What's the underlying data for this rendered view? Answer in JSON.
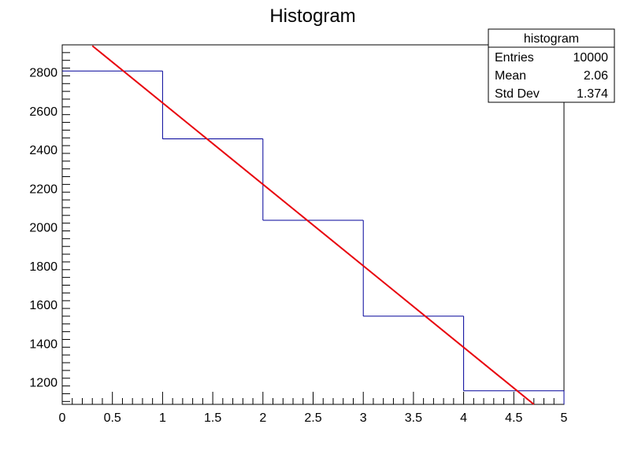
{
  "chart_data": {
    "type": "histogram",
    "title": "Histogram",
    "xlabel": "",
    "ylabel": "",
    "xlim": [
      0,
      5
    ],
    "ylim": [
      1085,
      2940
    ],
    "grid": false,
    "bins": [
      {
        "x0": 0,
        "x1": 1,
        "value": 2805
      },
      {
        "x0": 1,
        "x1": 2,
        "value": 2455
      },
      {
        "x0": 2,
        "x1": 3,
        "value": 2035
      },
      {
        "x0": 3,
        "x1": 4,
        "value": 1540
      },
      {
        "x0": 4,
        "x1": 5,
        "value": 1155
      }
    ],
    "fit_line": {
      "points": [
        [
          0.3,
          2935
        ],
        [
          4.7,
          1085
        ]
      ]
    },
    "x_ticks": [
      "0",
      "0.5",
      "1",
      "1.5",
      "2",
      "2.5",
      "3",
      "3.5",
      "4",
      "4.5",
      "5"
    ],
    "y_ticks": [
      "1200",
      "1400",
      "1600",
      "1800",
      "2000",
      "2200",
      "2400",
      "2600",
      "2800"
    ],
    "colors": {
      "histogram": "#000099",
      "fit": "#e8000b",
      "axis": "#000000"
    }
  },
  "stats_box": {
    "name": "histogram",
    "rows": [
      {
        "label": "Entries",
        "value": "10000"
      },
      {
        "label": "Mean",
        "value": "2.06"
      },
      {
        "label": "Std Dev",
        "value": "1.374"
      }
    ]
  }
}
